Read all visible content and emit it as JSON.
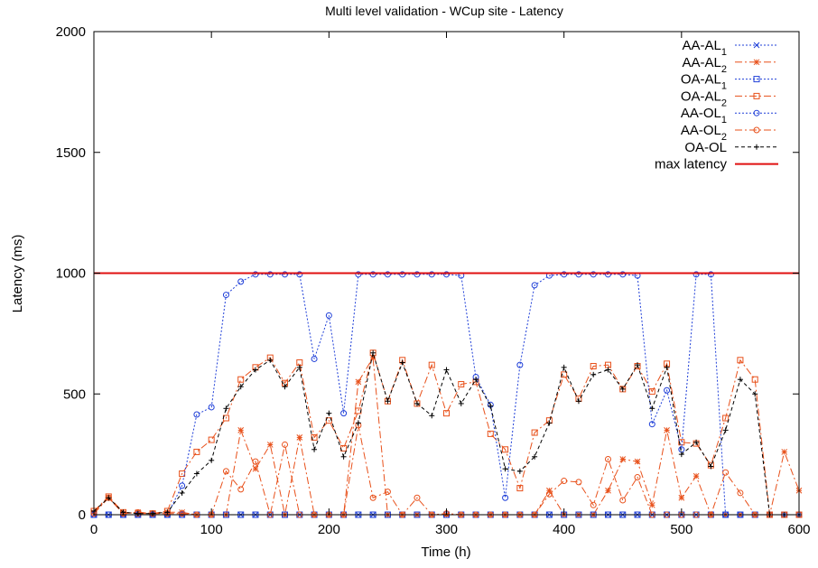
{
  "chart_data": {
    "type": "line",
    "title": "Multi level validation - WCup site - Latency",
    "xlabel": "Time (h)",
    "ylabel": "Latency (ms)",
    "xlim": [
      0,
      600
    ],
    "ylim": [
      0,
      2000
    ],
    "xticks": [
      "0",
      "100",
      "200",
      "300",
      "400",
      "500",
      "600"
    ],
    "yticks": [
      "0",
      "500",
      "1000",
      "1500",
      "2000"
    ],
    "grid": false,
    "legend_position": "top-right",
    "x": [
      0,
      12.5,
      25,
      37.5,
      50,
      62.5,
      75,
      87.5,
      100,
      112.5,
      125,
      137.5,
      150,
      162.5,
      175,
      187.5,
      200,
      212.5,
      225,
      237.5,
      250,
      262.5,
      275,
      287.5,
      300,
      312.5,
      325,
      337.5,
      350,
      362.5,
      375,
      387.5,
      400,
      412.5,
      425,
      437.5,
      450,
      462.5,
      475,
      487.5,
      500,
      512.5,
      525,
      537.5,
      550,
      562.5,
      575,
      587.5,
      600
    ],
    "series": [
      {
        "name": "AA-AL",
        "subscript": "1",
        "color": "#1f3fd8",
        "dash": "dotted",
        "marker": "x",
        "values": [
          0,
          0,
          0,
          0,
          0,
          0,
          0,
          0,
          0,
          0,
          0,
          0,
          0,
          0,
          0,
          0,
          0,
          0,
          0,
          0,
          0,
          0,
          0,
          0,
          0,
          0,
          0,
          0,
          0,
          0,
          0,
          0,
          0,
          0,
          0,
          0,
          0,
          0,
          0,
          0,
          0,
          0,
          0,
          0,
          0,
          0,
          0,
          0,
          0
        ]
      },
      {
        "name": "AA-AL",
        "subscript": "2",
        "color": "#e8501a",
        "dash": "dashdot",
        "marker": "star",
        "values": [
          10,
          70,
          5,
          10,
          5,
          10,
          10,
          0,
          0,
          0,
          350,
          190,
          290,
          0,
          320,
          0,
          0,
          0,
          550,
          650,
          0,
          0,
          0,
          0,
          0,
          0,
          0,
          0,
          0,
          0,
          0,
          100,
          0,
          0,
          0,
          100,
          230,
          220,
          40,
          350,
          70,
          160,
          0,
          0,
          0,
          0,
          0,
          260,
          100
        ]
      },
      {
        "name": "OA-AL",
        "subscript": "1",
        "color": "#1f3fd8",
        "dash": "dotted",
        "marker": "square",
        "values": [
          0,
          0,
          0,
          0,
          0,
          0,
          0,
          0,
          0,
          0,
          0,
          0,
          0,
          0,
          0,
          0,
          0,
          0,
          0,
          0,
          0,
          0,
          0,
          0,
          0,
          0,
          0,
          0,
          0,
          0,
          0,
          0,
          0,
          0,
          0,
          0,
          0,
          0,
          0,
          0,
          0,
          0,
          0,
          0,
          0,
          0,
          0,
          0,
          0
        ]
      },
      {
        "name": "OA-AL",
        "subscript": "2",
        "color": "#e8501a",
        "dash": "dashdot",
        "marker": "square",
        "values": [
          15,
          75,
          10,
          5,
          5,
          15,
          170,
          260,
          310,
          400,
          560,
          610,
          650,
          545,
          630,
          320,
          390,
          275,
          430,
          670,
          470,
          640,
          460,
          620,
          420,
          540,
          550,
          335,
          270,
          110,
          340,
          390,
          580,
          480,
          615,
          620,
          520,
          615,
          510,
          625,
          300,
          295,
          205,
          400,
          640,
          560,
          0,
          0,
          0
        ]
      },
      {
        "name": "AA-OL",
        "subscript": "1",
        "color": "#1f3fd8",
        "dash": "dotted",
        "marker": "circle",
        "values": [
          0,
          0,
          0,
          0,
          0,
          0,
          120,
          415,
          445,
          910,
          965,
          995,
          995,
          995,
          995,
          645,
          825,
          420,
          995,
          995,
          995,
          995,
          995,
          995,
          995,
          990,
          570,
          455,
          70,
          620,
          950,
          990,
          995,
          995,
          995,
          995,
          995,
          990,
          375,
          515,
          270,
          995,
          995,
          0,
          0,
          0,
          0,
          0,
          0
        ]
      },
      {
        "name": "AA-OL",
        "subscript": "2",
        "color": "#e8501a",
        "dash": "dashdot",
        "marker": "circle",
        "values": [
          5,
          70,
          5,
          10,
          5,
          5,
          5,
          0,
          0,
          180,
          105,
          220,
          0,
          290,
          0,
          0,
          0,
          0,
          370,
          70,
          95,
          0,
          70,
          0,
          5,
          0,
          0,
          0,
          0,
          0,
          0,
          85,
          140,
          135,
          40,
          230,
          60,
          155,
          0,
          0,
          0,
          0,
          0,
          175,
          90,
          0,
          0,
          0,
          0
        ]
      },
      {
        "name": "OA-OL",
        "color": "#000000",
        "dash": "dashed",
        "marker": "plus",
        "values": [
          15,
          70,
          10,
          5,
          5,
          10,
          90,
          170,
          225,
          440,
          530,
          600,
          640,
          530,
          610,
          270,
          420,
          240,
          380,
          670,
          470,
          630,
          460,
          410,
          600,
          460,
          560,
          450,
          190,
          180,
          240,
          380,
          610,
          470,
          580,
          600,
          520,
          620,
          440,
          610,
          250,
          300,
          200,
          350,
          560,
          500,
          0,
          0,
          0
        ]
      },
      {
        "name": "max latency",
        "color": "#e01010",
        "dash": "solid",
        "marker": "none",
        "values": [
          1000,
          1000,
          1000,
          1000,
          1000,
          1000,
          1000,
          1000,
          1000,
          1000,
          1000,
          1000,
          1000,
          1000,
          1000,
          1000,
          1000,
          1000,
          1000,
          1000,
          1000,
          1000,
          1000,
          1000,
          1000,
          1000,
          1000,
          1000,
          1000,
          1000,
          1000,
          1000,
          1000,
          1000,
          1000,
          1000,
          1000,
          1000,
          1000,
          1000,
          1000,
          1000,
          1000,
          1000,
          1000,
          1000,
          1000,
          1000,
          1000
        ]
      }
    ]
  }
}
